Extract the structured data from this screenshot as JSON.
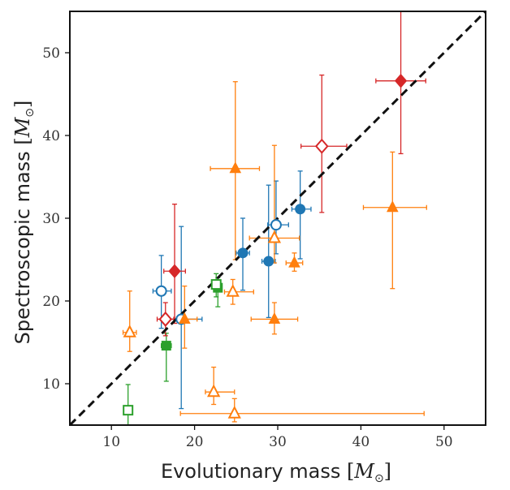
{
  "chart_data": {
    "type": "scatter",
    "title": "",
    "xlabel_text": "Evolutionary mass",
    "ylabel_text": "Spectroscopic mass",
    "unit_symbol": "M",
    "xlim": [
      5,
      55
    ],
    "ylim": [
      5,
      55
    ],
    "xticks": [
      10,
      20,
      30,
      40,
      50
    ],
    "yticks": [
      10,
      20,
      30,
      40,
      50
    ],
    "xtick_labels": [
      "10",
      "20",
      "30",
      "40",
      "50"
    ],
    "ytick_labels": [
      "10",
      "20",
      "30",
      "40",
      "50"
    ],
    "reference_line": {
      "type": "one-to-one",
      "style": "dashed",
      "color": "#111111"
    },
    "colors": {
      "blue": "#1f77b4",
      "orange": "#ff7f0e",
      "green": "#2ca02c",
      "red": "#d62728"
    },
    "series": [
      {
        "name": "blue-filled",
        "marker": "circle",
        "filled": true,
        "color": "#1f77b4",
        "points": [
          {
            "x": 25.8,
            "y": 25.8,
            "xerr": [
              0.8,
              0.8
            ],
            "yerr": [
              4.5,
              4.2
            ]
          },
          {
            "x": 28.9,
            "y": 24.8,
            "xerr": [
              0.8,
              0.8
            ],
            "yerr": [
              6.8,
              9.2
            ]
          },
          {
            "x": 32.7,
            "y": 31.1,
            "xerr": [
              1.0,
              1.3
            ],
            "yerr": [
              6.0,
              4.6
            ]
          }
        ]
      },
      {
        "name": "blue-open",
        "marker": "circle",
        "filled": false,
        "color": "#1f77b4",
        "points": [
          {
            "x": 16.0,
            "y": 21.2,
            "xerr": [
              1.0,
              1.2
            ],
            "yerr": [
              4.5,
              4.3
            ]
          },
          {
            "x": 18.4,
            "y": 17.8,
            "xerr": [
              1.6,
              2.5
            ],
            "yerr": [
              10.8,
              11.2
            ]
          },
          {
            "x": 29.8,
            "y": 29.2,
            "xerr": [
              1.0,
              1.5
            ],
            "yerr": [
              3.5,
              5.3
            ]
          }
        ]
      },
      {
        "name": "orange-filled",
        "marker": "triangle",
        "filled": true,
        "color": "#ff7f0e",
        "points": [
          {
            "x": 18.8,
            "y": 17.8,
            "xerr": [
              1.0,
              1.5
            ],
            "yerr": [
              3.5,
              4.0
            ]
          },
          {
            "x": 24.9,
            "y": 36.0,
            "xerr": [
              3.0,
              2.9
            ],
            "yerr": [
              11.0,
              10.5
            ]
          },
          {
            "x": 29.6,
            "y": 17.8,
            "xerr": [
              2.8,
              2.8
            ],
            "yerr": [
              1.8,
              2.0
            ]
          },
          {
            "x": 32.0,
            "y": 24.6,
            "xerr": [
              1.0,
              1.0
            ],
            "yerr": [
              1.0,
              1.2
            ]
          },
          {
            "x": 43.8,
            "y": 31.3,
            "xerr": [
              3.5,
              4.1
            ],
            "yerr": [
              9.8,
              6.7
            ]
          }
        ]
      },
      {
        "name": "orange-open",
        "marker": "triangle",
        "filled": false,
        "color": "#ff7f0e",
        "points": [
          {
            "x": 12.2,
            "y": 16.2,
            "xerr": [
              0.8,
              0.8
            ],
            "yerr": [
              2.3,
              5.0
            ]
          },
          {
            "x": 22.3,
            "y": 9.0,
            "xerr": [
              1.0,
              2.5
            ],
            "yerr": [
              1.5,
              3.0
            ]
          },
          {
            "x": 24.6,
            "y": 21.1,
            "xerr": [
              1.0,
              2.5
            ],
            "yerr": [
              1.5,
              1.5
            ]
          },
          {
            "x": 24.8,
            "y": 6.4,
            "xerr": [
              6.5,
              22.8
            ],
            "yerr": [
              1.0,
              1.8
            ]
          },
          {
            "x": 29.6,
            "y": 27.6,
            "xerr": [
              3.0,
              3.0
            ],
            "yerr": [
              3.0,
              11.2
            ]
          }
        ]
      },
      {
        "name": "green-filled",
        "marker": "square",
        "filled": true,
        "color": "#2ca02c",
        "points": [
          {
            "x": 16.6,
            "y": 14.6,
            "xerr": [
              0.6,
              0.6
            ],
            "yerr": [
              4.3,
              1.5
            ]
          },
          {
            "x": 22.8,
            "y": 21.6,
            "xerr": [
              0.5,
              0.5
            ],
            "yerr": [
              2.3,
              1.2
            ]
          }
        ]
      },
      {
        "name": "green-open",
        "marker": "square",
        "filled": false,
        "color": "#2ca02c",
        "points": [
          {
            "x": 12.0,
            "y": 6.8,
            "xerr": [
              0.4,
              0.4
            ],
            "yerr": [
              1.8,
              3.1
            ]
          },
          {
            "x": 22.6,
            "y": 22.0,
            "xerr": [
              0.5,
              0.5
            ],
            "yerr": [
              1.5,
              1.3
            ]
          }
        ]
      },
      {
        "name": "red-filled",
        "marker": "diamond",
        "filled": true,
        "color": "#d62728",
        "points": [
          {
            "x": 17.6,
            "y": 23.6,
            "xerr": [
              1.3,
              1.3
            ],
            "yerr": [
              6.3,
              8.1
            ]
          },
          {
            "x": 44.8,
            "y": 46.6,
            "xerr": [
              3.0,
              3.0
            ],
            "yerr": [
              8.8,
              8.4
            ]
          }
        ]
      },
      {
        "name": "red-open",
        "marker": "diamond",
        "filled": false,
        "color": "#d62728",
        "points": [
          {
            "x": 16.5,
            "y": 17.8,
            "xerr": [
              1.0,
              1.0
            ],
            "yerr": [
              2.0,
              2.0
            ]
          },
          {
            "x": 35.3,
            "y": 38.7,
            "xerr": [
              2.5,
              3.0
            ],
            "yerr": [
              8.0,
              8.6
            ]
          }
        ]
      }
    ]
  }
}
